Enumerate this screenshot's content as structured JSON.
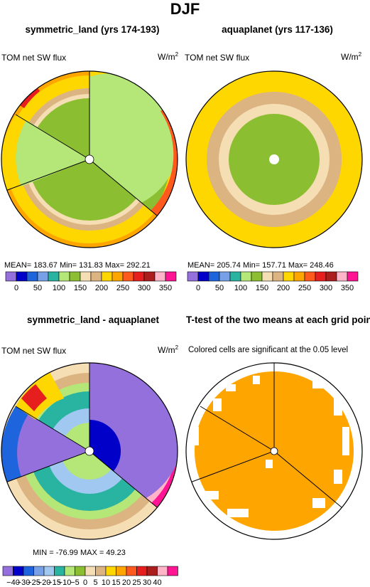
{
  "title": "DJF",
  "colors": {
    "lavender": "#9370db",
    "navy": "#0000c8",
    "blue": "#1e64dc",
    "lightblue": "#78a0e6",
    "paleblue": "#a0c8f0",
    "teal": "#28b4a0",
    "lightgreen": "#b4e678",
    "green": "#8cbe32",
    "cream": "#f5deb3",
    "tan": "#dcb482",
    "yellow": "#ffd700",
    "orange": "#ffa500",
    "redorange": "#ff5a1e",
    "red": "#e61e1e",
    "darkred": "#aa1e1e",
    "pink": "#ffb4c8",
    "magenta": "#ff1493",
    "ttest": "#ffa500"
  },
  "panels": [
    {
      "title": "symmetric_land (yrs 174-193)",
      "field": "TOM net SW flux",
      "units_base": "W/m",
      "units_exp": "2",
      "stats": "MEAN= 183.67   Min= 131.83   Max= 292.21"
    },
    {
      "title": "aquaplanet (yrs 117-136)",
      "field": "TOM net SW flux",
      "units_base": "W/m",
      "units_exp": "2",
      "stats": "MEAN= 205.74   Min= 157.71   Max= 248.46"
    },
    {
      "title": "symmetric_land - aquaplanet",
      "field": "TOM net SW flux",
      "units_base": "W/m",
      "units_exp": "2",
      "stats": "MIN = -76.99  MAX =  49.23"
    },
    {
      "title": "T-test of the two means at each grid point",
      "note": "Colored cells are significant at the 0.05 level"
    }
  ],
  "chart_data": [
    {
      "type": "heatmap",
      "projection": "polar",
      "title": "symmetric_land (yrs 174-193)",
      "field": "TOM net SW flux",
      "units": "W/m2",
      "stats": {
        "mean": 183.67,
        "min": 131.83,
        "max": 292.21
      },
      "contour_levels": [
        0,
        25,
        50,
        75,
        100,
        125,
        150,
        175,
        200,
        225,
        250,
        275,
        300,
        325,
        350
      ],
      "colorbar_labels": [
        "0",
        "50",
        "100",
        "150",
        "200",
        "250",
        "300",
        "350"
      ]
    },
    {
      "type": "heatmap",
      "projection": "polar",
      "title": "aquaplanet (yrs 117-136)",
      "field": "TOM net SW flux",
      "units": "W/m2",
      "stats": {
        "mean": 205.74,
        "min": 157.71,
        "max": 248.46
      },
      "contour_levels": [
        0,
        25,
        50,
        75,
        100,
        125,
        150,
        175,
        200,
        225,
        250,
        275,
        300,
        325,
        350
      ],
      "colorbar_labels": [
        "0",
        "50",
        "100",
        "150",
        "200",
        "250",
        "300",
        "350"
      ]
    },
    {
      "type": "heatmap",
      "projection": "polar",
      "title": "symmetric_land - aquaplanet",
      "field": "TOM net SW flux",
      "units": "W/m2",
      "stats": {
        "min": -76.99,
        "max": 49.23
      },
      "contour_levels": [
        -40,
        -35,
        -30,
        -25,
        -20,
        -15,
        -10,
        -5,
        0,
        5,
        10,
        15,
        20,
        25,
        30,
        35,
        40
      ],
      "colorbar_labels": [
        "−40",
        "−30",
        "−25",
        "−20",
        "−15",
        "−10",
        "−5",
        "0",
        "5",
        "10",
        "15",
        "20",
        "25",
        "30",
        "40"
      ]
    },
    {
      "type": "heatmap",
      "projection": "polar",
      "title": "T-test of the two means at each grid point",
      "note": "Colored cells are significant at the 0.05 level",
      "significance_level": 0.05
    }
  ]
}
